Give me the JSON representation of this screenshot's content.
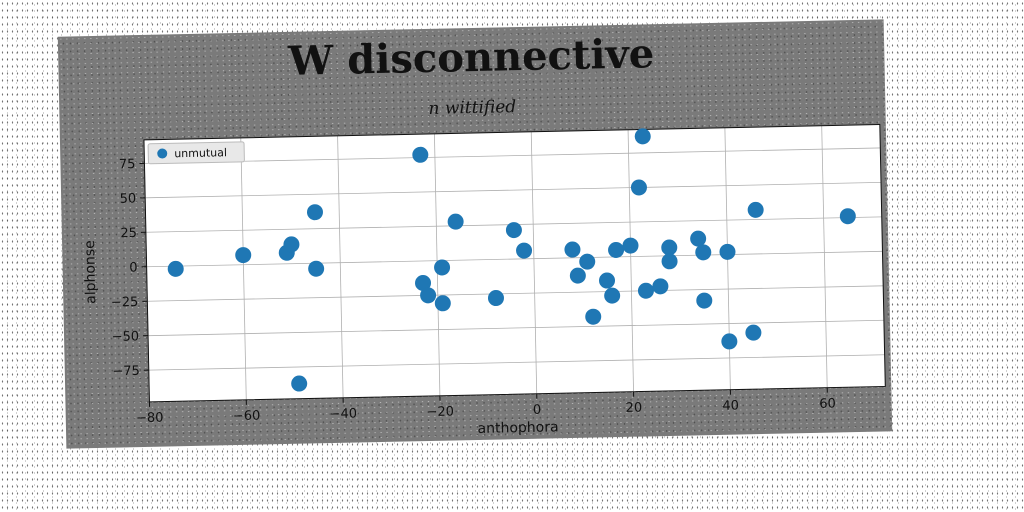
{
  "chart_data": {
    "type": "scatter",
    "title": "W disconnective",
    "subtitle": "n wittified",
    "xlabel": "anthophora",
    "ylabel": "alphonse",
    "xlim": [
      -80,
      72
    ],
    "ylim": [
      -98,
      92
    ],
    "xticks": [
      -80,
      -60,
      -40,
      -20,
      0,
      20,
      40,
      60
    ],
    "yticks": [
      -75,
      -50,
      -25,
      0,
      25,
      50,
      75
    ],
    "grid": true,
    "legend_position": "top-left",
    "series": [
      {
        "name": "unmutual",
        "color": "#1f77b4",
        "points": [
          [
            -74,
            -2
          ],
          [
            -60,
            7
          ],
          [
            -51,
            8
          ],
          [
            -50,
            14
          ],
          [
            -45,
            37
          ],
          [
            -45,
            -4
          ],
          [
            -49,
            -87
          ],
          [
            -23,
            77
          ],
          [
            -23,
            -16
          ],
          [
            -22,
            -25
          ],
          [
            -19,
            -5
          ],
          [
            -19,
            -31
          ],
          [
            -16,
            28
          ],
          [
            -8,
            -28
          ],
          [
            -4,
            21
          ],
          [
            -2,
            6
          ],
          [
            8,
            6
          ],
          [
            9,
            -13
          ],
          [
            11,
            -3
          ],
          [
            12,
            -43
          ],
          [
            15,
            -17
          ],
          [
            16,
            -28
          ],
          [
            17,
            5
          ],
          [
            20,
            8
          ],
          [
            22,
            50
          ],
          [
            23,
            87
          ],
          [
            23,
            -25
          ],
          [
            26,
            -22
          ],
          [
            28,
            6
          ],
          [
            28,
            -4
          ],
          [
            34,
            12
          ],
          [
            35,
            2
          ],
          [
            35,
            -33
          ],
          [
            40,
            2
          ],
          [
            40,
            -63
          ],
          [
            45,
            -57
          ],
          [
            46,
            32
          ],
          [
            65,
            26
          ]
        ]
      }
    ]
  }
}
